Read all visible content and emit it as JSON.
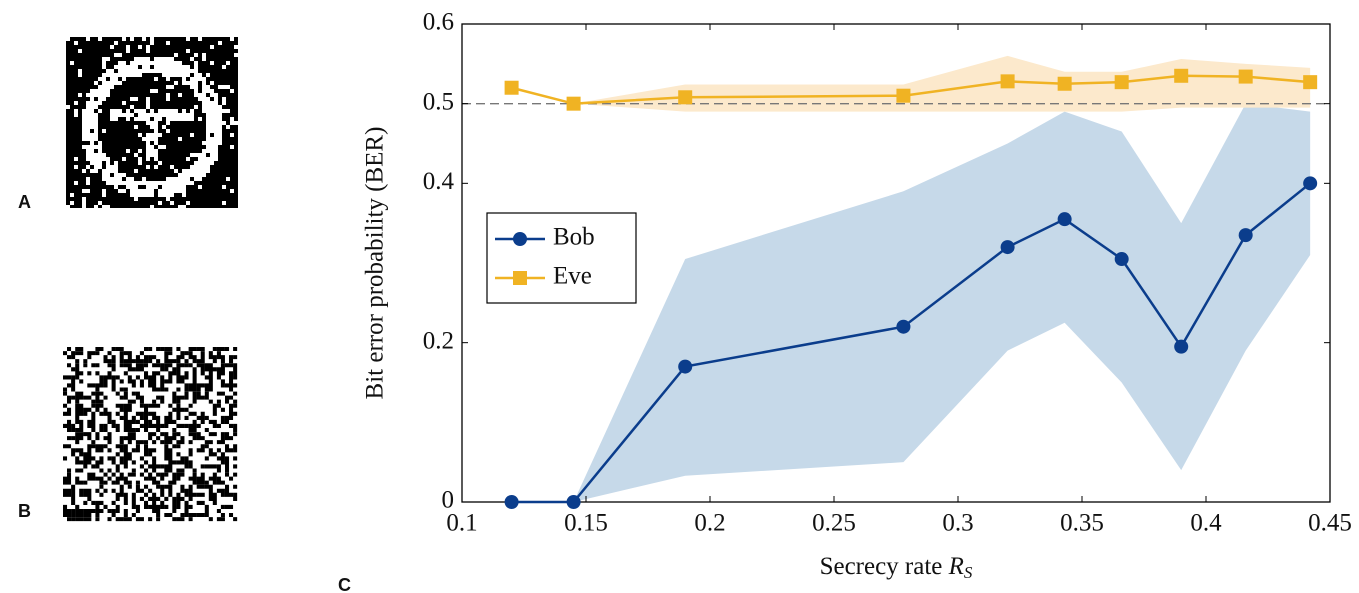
{
  "panel_labels": [
    "A",
    "B",
    "C"
  ],
  "chart_data": {
    "type": "line",
    "xlabel": {
      "text": "Secrecy rate",
      "symbol": "R",
      "subscript": "S"
    },
    "ylabel": "Bit error probability (BER)",
    "x": [
      0.12,
      0.145,
      0.19,
      0.278,
      0.32,
      0.343,
      0.366,
      0.39,
      0.416,
      0.442
    ],
    "xlim": [
      0.1,
      0.45
    ],
    "xticks": [
      0.1,
      0.15,
      0.2,
      0.25,
      0.3,
      0.35,
      0.4,
      0.45
    ],
    "ylim": [
      0,
      0.6
    ],
    "yticks": [
      0,
      0.2,
      0.4,
      0.5,
      0.6
    ],
    "hline": 0.5,
    "legend": "upper left",
    "series": [
      {
        "name": "Bob",
        "color": "#0b3d8c",
        "band_color": "#c6d9e9",
        "marker": "circle",
        "values": [
          0,
          0,
          0.17,
          0.22,
          0.32,
          0.355,
          0.305,
          0.195,
          0.335,
          0.4
        ],
        "lower": [
          null,
          0,
          0.033,
          0.05,
          0.19,
          0.225,
          0.15,
          0.04,
          0.19,
          0.31
        ],
        "upper": [
          null,
          0,
          0.305,
          0.39,
          0.45,
          0.49,
          0.465,
          0.35,
          0.5,
          0.49
        ]
      },
      {
        "name": "Eve",
        "color": "#f0b323",
        "band_color": "#fce9cc",
        "marker": "square",
        "values": [
          0.52,
          0.5,
          0.508,
          0.51,
          0.528,
          0.525,
          0.527,
          0.535,
          0.534,
          0.527
        ],
        "lower": [
          null,
          0.5,
          0.49,
          0.49,
          0.49,
          0.49,
          0.49,
          0.495,
          0.495,
          0.495
        ],
        "upper": [
          null,
          0.5,
          0.524,
          0.524,
          0.56,
          0.54,
          0.54,
          0.556,
          0.55,
          0.545
        ]
      }
    ]
  }
}
